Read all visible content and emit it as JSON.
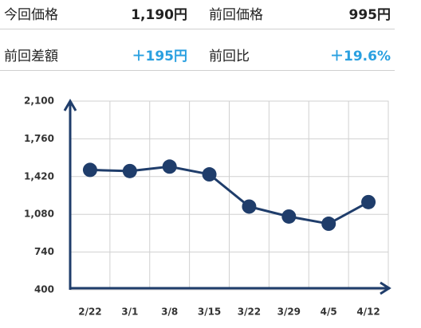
{
  "info": {
    "rows": [
      [
        {
          "label": "今回価格",
          "value": "1,190円"
        },
        {
          "label": "前回価格",
          "value": "995円"
        }
      ],
      [
        {
          "label": "前回差額",
          "value": "＋195円"
        },
        {
          "label": "前回比",
          "value": "＋19.6%"
        }
      ]
    ]
  },
  "chart_data": {
    "type": "line",
    "categories": [
      "2/22",
      "3/1",
      "3/8",
      "3/15",
      "3/22",
      "3/29",
      "4/5",
      "4/12"
    ],
    "series": [
      {
        "color": "#1f3d6b",
        "values": [
          1480,
          1470,
          1510,
          1440,
          1150,
          1060,
          995,
          1190
        ]
      }
    ],
    "ylim": [
      400,
      2100
    ],
    "yticks": [
      {
        "value": 400,
        "label": "400"
      },
      {
        "value": 740,
        "label": "740"
      },
      {
        "value": 1080,
        "label": "1,080"
      },
      {
        "value": 1420,
        "label": "1,420"
      },
      {
        "value": 1760,
        "label": "1,760"
      },
      {
        "value": 2100,
        "label": "2,100"
      }
    ],
    "grid": true
  }
}
